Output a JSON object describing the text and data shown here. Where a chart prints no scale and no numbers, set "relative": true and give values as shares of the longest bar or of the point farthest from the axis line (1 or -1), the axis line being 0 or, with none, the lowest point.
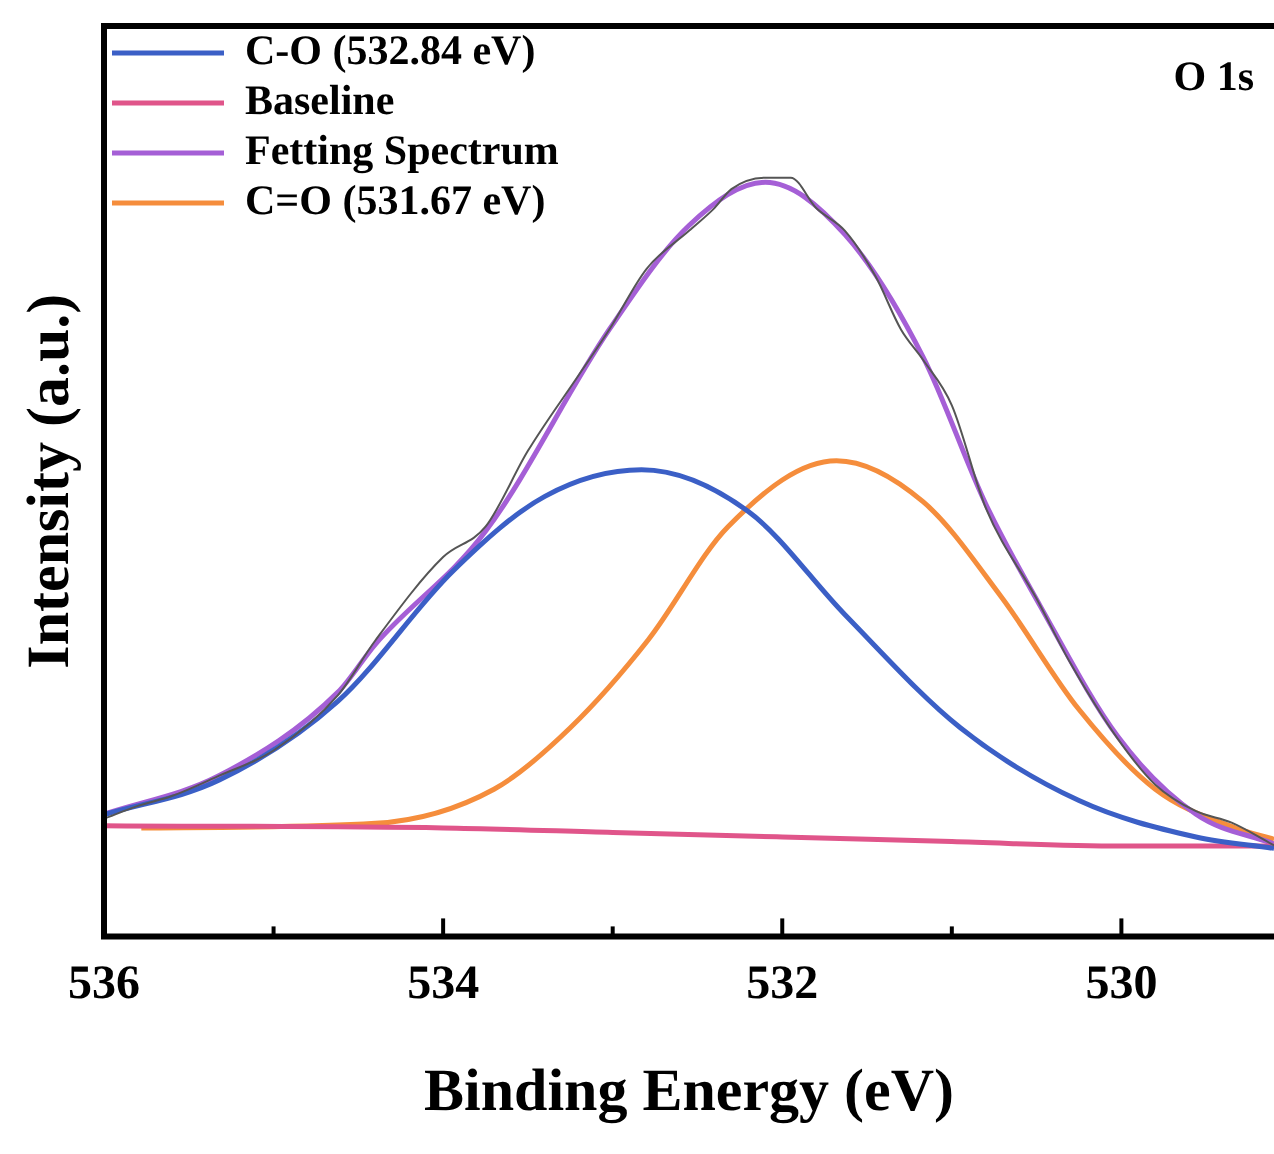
{
  "chart_data": {
    "type": "line",
    "xlabel": "Binding Energy (eV)",
    "ylabel": "Intensity (a.u.)",
    "relative": true,
    "xlim": [
      536,
      529.1
    ],
    "xticks": [
      536,
      {
        "value": 535,
        "label": null
      },
      534,
      {
        "value": 533,
        "label": null
      },
      532,
      {
        "value": 531,
        "label": null
      },
      530
    ],
    "legend": "top left",
    "grid": false,
    "marker": "none",
    "line_style": "solid",
    "annotations": [
      "O 1s"
    ],
    "series": [
      {
        "color": "#555555",
        "x": [
          536,
          535.8,
          535.6,
          535.32,
          535.0,
          534.62,
          534.4,
          534.0,
          533.75,
          533.5,
          533.2,
          533.02,
          532.8,
          532.55,
          532.4,
          532.3,
          532.1,
          531.95,
          531.8,
          531.63,
          531.45,
          531.3,
          531.17,
          531.0,
          530.8,
          530.5,
          530.3,
          530.02,
          529.8,
          529.56,
          529.35,
          529.1
        ],
        "values": [
          0.155,
          0.172,
          0.185,
          0.212,
          0.245,
          0.318,
          0.39,
          0.5,
          0.54,
          0.64,
          0.74,
          0.8,
          0.88,
          0.93,
          0.96,
          0.985,
          1.0,
          1.0,
          0.96,
          0.93,
          0.87,
          0.8,
          0.76,
          0.7,
          0.565,
          0.445,
          0.36,
          0.26,
          0.2,
          0.165,
          0.15,
          0.12
        ]
      },
      {
        "name": "C-O (532.84 eV)",
        "color": "#3b5fc6",
        "x": [
          535.99,
          535.32,
          534.62,
          533.94,
          533.4,
          532.83,
          532.2,
          531.63,
          530.95,
          530.25,
          529.56,
          529.1
        ],
        "values": [
          0.161,
          0.206,
          0.31,
          0.482,
          0.58,
          0.615,
          0.56,
          0.424,
          0.275,
          0.179,
          0.131,
          0.116
        ]
      },
      {
        "name": "Baseline",
        "color": "#e0558a",
        "x": [
          536,
          534,
          533,
          532,
          531,
          530,
          529.1
        ],
        "values": [
          0.146,
          0.143,
          0.137,
          0.131,
          0.125,
          0.119,
          0.119
        ]
      },
      {
        "name": "Fetting Spectrum",
        "color": "#a55fd6",
        "x": [
          536,
          535.32,
          534.62,
          534.4,
          533.75,
          533.02,
          532.55,
          532.1,
          531.63,
          531.17,
          530.8,
          530.48,
          530.02,
          529.56,
          529.1
        ],
        "values": [
          0.161,
          0.212,
          0.322,
          0.385,
          0.534,
          0.8,
          0.937,
          0.994,
          0.925,
          0.764,
          0.57,
          0.436,
          0.263,
          0.161,
          0.122
        ]
      },
      {
        "name": "C=O (531.67 eV)",
        "color": "#f58d3c",
        "x": [
          535.78,
          534.4,
          533.7,
          533.25,
          532.79,
          532.32,
          531.68,
          531.17,
          530.71,
          530.25,
          529.8,
          529.33,
          529.1
        ],
        "values": [
          0.143,
          0.149,
          0.194,
          0.275,
          0.391,
          0.54,
          0.627,
          0.573,
          0.448,
          0.299,
          0.194,
          0.143,
          0.128
        ]
      }
    ]
  }
}
